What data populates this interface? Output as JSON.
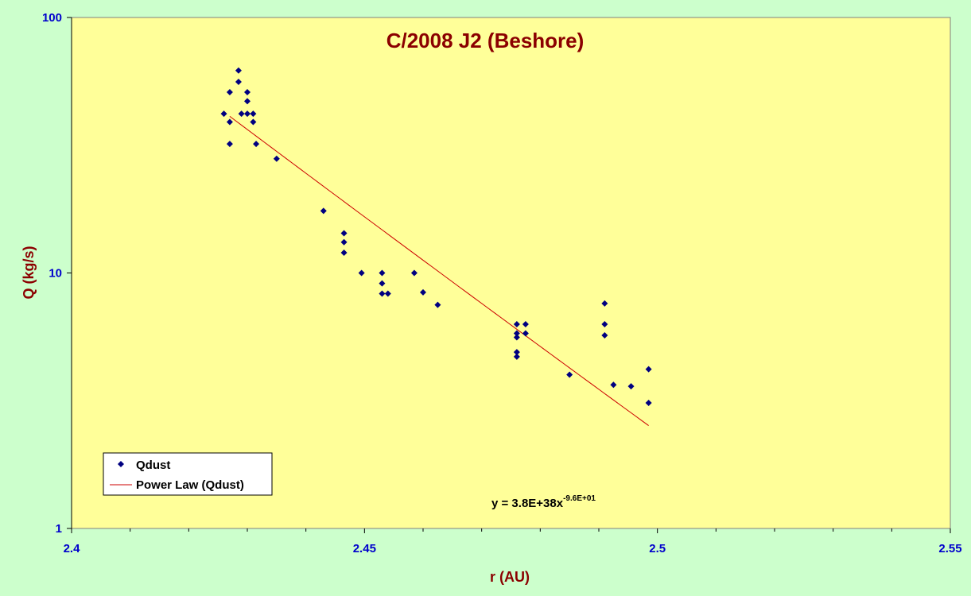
{
  "chart_data": {
    "type": "scatter",
    "title": "C/2008 J2 (Beshore)",
    "xlabel": "r (AU)",
    "ylabel": "Q (kg/s)",
    "xlim": [
      2.4,
      2.55
    ],
    "ylim": [
      1,
      100
    ],
    "y_scale": "log",
    "x_ticks": [
      "2.4",
      "2.45",
      "2.5",
      "2.55"
    ],
    "y_ticks": [
      "1",
      "10",
      "100"
    ],
    "grid": false,
    "legend_position": "bottom-left",
    "colors": {
      "outer_background": "#CCFFCC",
      "plot_background": "#FFFF99",
      "marker": "#000080",
      "trendline": "#CC0000",
      "title": "#8B0000",
      "tick_labels": "#0000CC"
    },
    "series": [
      {
        "name": "Qdust",
        "kind": "scatter",
        "marker": "diamond",
        "points": [
          [
            2.426,
            42
          ],
          [
            2.427,
            51
          ],
          [
            2.427,
            39
          ],
          [
            2.427,
            32
          ],
          [
            2.4285,
            62
          ],
          [
            2.4285,
            56
          ],
          [
            2.429,
            42
          ],
          [
            2.43,
            51
          ],
          [
            2.43,
            47
          ],
          [
            2.43,
            42
          ],
          [
            2.431,
            42
          ],
          [
            2.431,
            39
          ],
          [
            2.4315,
            32
          ],
          [
            2.435,
            28
          ],
          [
            2.443,
            17.5
          ],
          [
            2.4465,
            14.3
          ],
          [
            2.4465,
            13.2
          ],
          [
            2.4465,
            12
          ],
          [
            2.4495,
            10
          ],
          [
            2.453,
            10
          ],
          [
            2.453,
            9.1
          ],
          [
            2.453,
            8.3
          ],
          [
            2.454,
            8.3
          ],
          [
            2.4585,
            10
          ],
          [
            2.46,
            8.4
          ],
          [
            2.4625,
            7.5
          ],
          [
            2.476,
            6.3
          ],
          [
            2.476,
            5.8
          ],
          [
            2.476,
            5.6
          ],
          [
            2.476,
            4.9
          ],
          [
            2.476,
            4.7
          ],
          [
            2.4775,
            6.3
          ],
          [
            2.4775,
            5.8
          ],
          [
            2.485,
            4.0
          ],
          [
            2.491,
            7.6
          ],
          [
            2.491,
            6.3
          ],
          [
            2.491,
            5.7
          ],
          [
            2.4925,
            3.65
          ],
          [
            2.4955,
            3.6
          ],
          [
            2.4985,
            4.2
          ],
          [
            2.4985,
            3.1
          ]
        ]
      },
      {
        "name": "Power Law (Qdust)",
        "kind": "trendline",
        "coefficient": 3.8e+38,
        "exponent": -96,
        "x_range": [
          2.427,
          2.4985
        ]
      }
    ],
    "annotations": {
      "equation_main": "y = 3.8E+38x",
      "equation_exponent": "-9.6E+01"
    }
  }
}
